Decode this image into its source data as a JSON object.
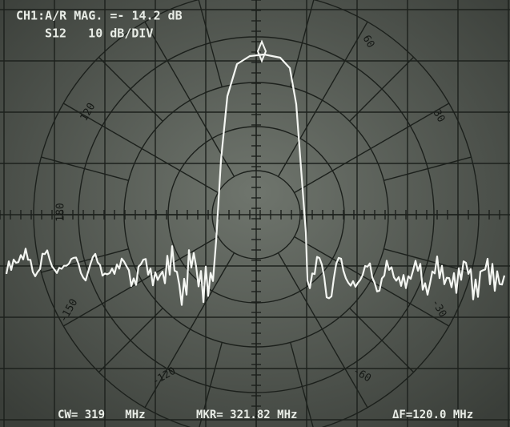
{
  "header": {
    "line1": "CH1:A/R MAG. =- 14.2 dB",
    "line2": "S12   10 dB/DIV"
  },
  "polar_labels": [
    "60",
    "30",
    "120",
    "180",
    "-150",
    "-120",
    "-60",
    "-30"
  ],
  "footer": {
    "cw": "CW= 319   MHz",
    "marker": "MKR= 321.82 MHz",
    "span": "ΔF=120.0 MHz"
  }
}
